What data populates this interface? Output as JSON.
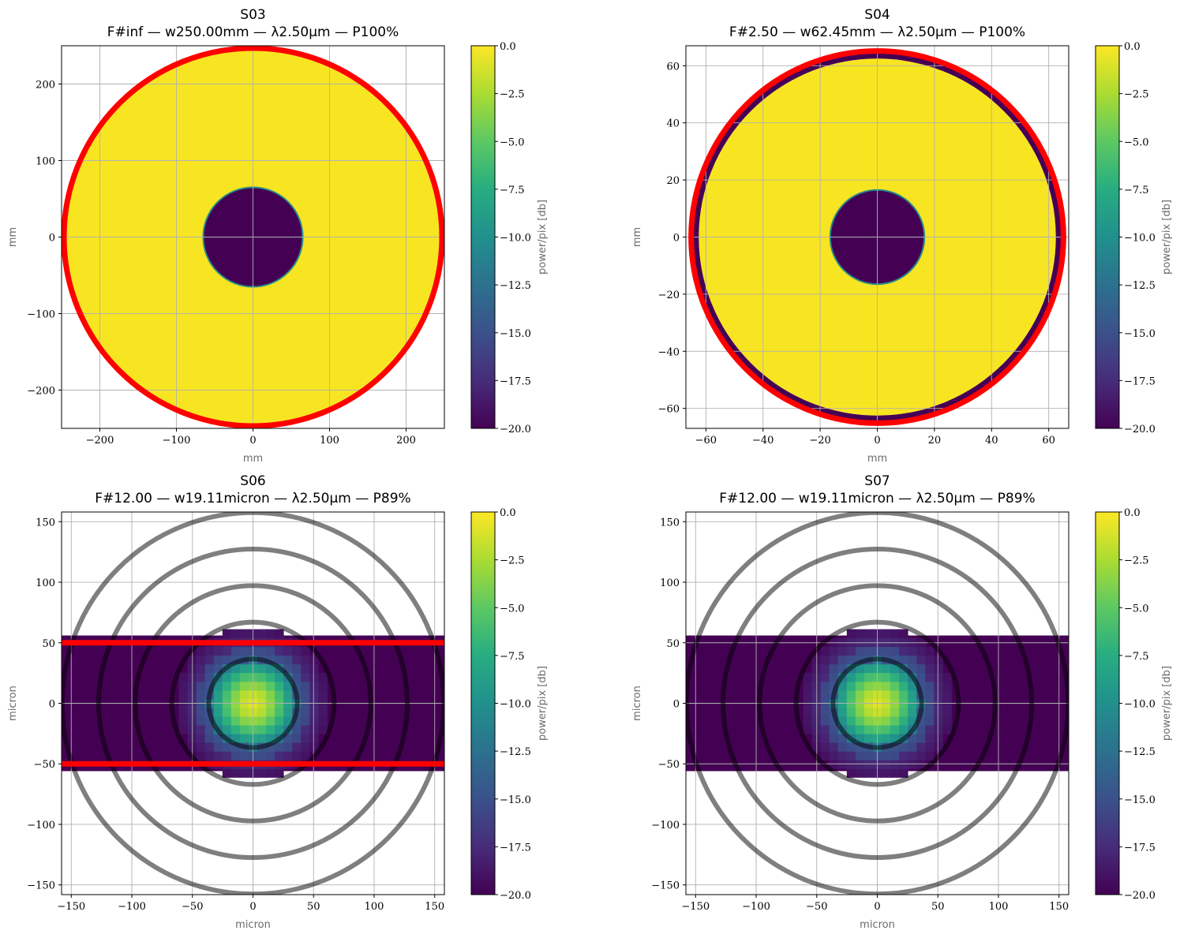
{
  "colors": {
    "high": "#f8e521",
    "low": "#440154",
    "aperture": "#ff0000",
    "rings": "#000000",
    "grid": "#b0b0b0"
  },
  "colormap": "viridis",
  "chart_data": [
    {
      "type": "heatmap",
      "title_line1": "S03",
      "title_line2": "F#inf — w250.00mm — λ2.50µm — P100%",
      "xlabel": "mm",
      "ylabel": "mm",
      "xlim": [
        -250,
        250
      ],
      "ylim": [
        -250,
        250
      ],
      "xticks": [
        -200,
        -100,
        0,
        100,
        200
      ],
      "yticks": [
        -200,
        -100,
        0,
        100,
        200
      ],
      "xtick_labels": [
        "−200",
        "−100",
        "0",
        "100",
        "200"
      ],
      "ytick_labels": [
        "−200",
        "−100",
        "0",
        "100",
        "200"
      ],
      "beam": {
        "kind": "annulus",
        "outer_radius": 250,
        "inner_radius": 65,
        "level_db": 0,
        "background_db": -20
      },
      "aperture": {
        "kind": "circle",
        "radius": 250
      },
      "rings": [],
      "colorbar": {
        "label": "power/pix [db]",
        "range": [
          -20,
          0
        ],
        "ticks": [
          0,
          -2.5,
          -5,
          -7.5,
          -10,
          -12.5,
          -15,
          -17.5,
          -20
        ],
        "tick_labels": [
          "0.0",
          "−2.5",
          "−5.0",
          "−7.5",
          "−10.0",
          "−12.5",
          "−15.0",
          "−17.5",
          "−20.0"
        ]
      }
    },
    {
      "type": "heatmap",
      "title_line1": "S04",
      "title_line2": "F#2.50 — w62.45mm — λ2.50µm — P100%",
      "xlabel": "mm",
      "ylabel": "mm",
      "xlim": [
        -67,
        67
      ],
      "ylim": [
        -67,
        67
      ],
      "xticks": [
        -60,
        -40,
        -20,
        0,
        20,
        40,
        60
      ],
      "yticks": [
        -60,
        -40,
        -20,
        0,
        20,
        40,
        60
      ],
      "xtick_labels": [
        "−60",
        "−40",
        "−20",
        "0",
        "20",
        "40",
        "60"
      ],
      "ytick_labels": [
        "−60",
        "−40",
        "−20",
        "0",
        "20",
        "40",
        "60"
      ],
      "beam": {
        "kind": "annulus",
        "outer_radius": 62.5,
        "inner_radius": 16.5,
        "level_db": 0,
        "background_db": -20
      },
      "aperture": {
        "kind": "circle",
        "radius": 66
      },
      "rings": [],
      "colorbar": {
        "label": "power/pix [db]",
        "range": [
          -20,
          0
        ],
        "ticks": [
          0,
          -2.5,
          -5,
          -7.5,
          -10,
          -12.5,
          -15,
          -17.5,
          -20
        ],
        "tick_labels": [
          "0.0",
          "−2.5",
          "−5.0",
          "−7.5",
          "−10.0",
          "−12.5",
          "−15.0",
          "−17.5",
          "−20.0"
        ]
      }
    },
    {
      "type": "heatmap",
      "title_line1": "S06",
      "title_line2": "F#12.00 — w19.11micron — λ2.50µm — P89%",
      "xlabel": "micron",
      "ylabel": "micron",
      "xlim": [
        -158,
        158
      ],
      "ylim": [
        -158,
        158
      ],
      "xticks": [
        -150,
        -100,
        -50,
        0,
        50,
        100,
        150
      ],
      "yticks": [
        -150,
        -100,
        -50,
        0,
        50,
        100,
        150
      ],
      "xtick_labels": [
        "−150",
        "−100",
        "−50",
        "0",
        "50",
        "100",
        "150"
      ],
      "ytick_labels": [
        "−150",
        "−100",
        "−50",
        "0",
        "50",
        "100",
        "150"
      ],
      "beam": {
        "kind": "airy",
        "pixel": 7.2,
        "strip_halfheight": 56,
        "core_radius": 19.11,
        "background_db": -20
      },
      "aperture": {
        "kind": "slit",
        "halfwidth": 50
      },
      "rings": [
        36.6,
        67.0,
        97.2,
        127.4,
        157.5
      ],
      "colorbar": {
        "label": "power/pix [db]",
        "range": [
          -20,
          0
        ],
        "ticks": [
          0,
          -2.5,
          -5,
          -7.5,
          -10,
          -12.5,
          -15,
          -17.5,
          -20
        ],
        "tick_labels": [
          "0.0",
          "−2.5",
          "−5.0",
          "−7.5",
          "−10.0",
          "−12.5",
          "−15.0",
          "−17.5",
          "−20.0"
        ]
      }
    },
    {
      "type": "heatmap",
      "title_line1": "S07",
      "title_line2": "F#12.00 — w19.11micron — λ2.50µm — P89%",
      "xlabel": "micron",
      "ylabel": "micron",
      "xlim": [
        -158,
        158
      ],
      "ylim": [
        -158,
        158
      ],
      "xticks": [
        -150,
        -100,
        -50,
        0,
        50,
        100,
        150
      ],
      "yticks": [
        -150,
        -100,
        -50,
        0,
        50,
        100,
        150
      ],
      "xtick_labels": [
        "−150",
        "−100",
        "−50",
        "0",
        "50",
        "100",
        "150"
      ],
      "ytick_labels": [
        "−150",
        "−100",
        "−50",
        "0",
        "50",
        "100",
        "150"
      ],
      "beam": {
        "kind": "airy",
        "pixel": 7.2,
        "strip_halfheight": 56,
        "core_radius": 19.11,
        "background_db": -20
      },
      "aperture": {
        "kind": "none"
      },
      "rings": [
        36.6,
        67.0,
        97.2,
        127.4,
        157.5
      ],
      "colorbar": {
        "label": "power/pix [db]",
        "range": [
          -20,
          0
        ],
        "ticks": [
          0,
          -2.5,
          -5,
          -7.5,
          -10,
          -12.5,
          -15,
          -17.5,
          -20
        ],
        "tick_labels": [
          "0.0",
          "−2.5",
          "−5.0",
          "−7.5",
          "−10.0",
          "−12.5",
          "−15.0",
          "−17.5",
          "−20.0"
        ]
      }
    }
  ]
}
